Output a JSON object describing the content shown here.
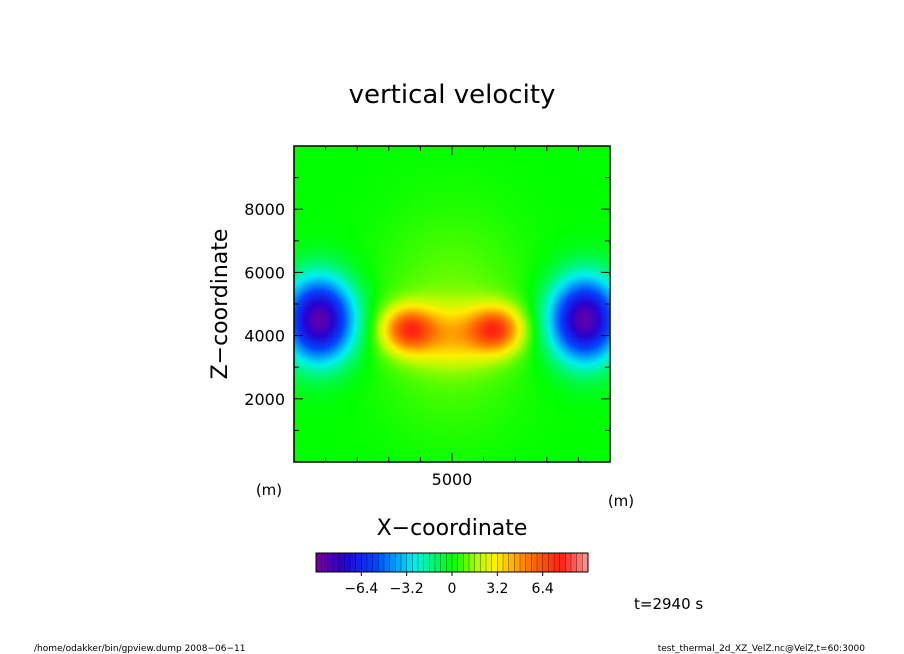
{
  "chart_data": {
    "type": "heatmap",
    "title": "vertical velocity",
    "xlabel": "X−coordinate",
    "ylabel": "Z−coordinate",
    "x_unit": "(m)",
    "y_unit": "(m)",
    "xlim": [
      0,
      10000
    ],
    "ylim": [
      0,
      10000
    ],
    "x_ticks": [
      {
        "value": 5000,
        "label": "5000"
      }
    ],
    "y_ticks": [
      {
        "value": 2000,
        "label": "2000"
      },
      {
        "value": 4000,
        "label": "4000"
      },
      {
        "value": 6000,
        "label": "6000"
      },
      {
        "value": 8000,
        "label": "8000"
      }
    ],
    "x_minor_step": 1000,
    "y_minor_step": 1000,
    "features": [
      {
        "x": 800,
        "z": 4500,
        "w": -9.0
      },
      {
        "x": 9200,
        "z": 4500,
        "w": -9.0
      },
      {
        "x": 3600,
        "z": 4200,
        "w": 5.5
      },
      {
        "x": 6400,
        "z": 4200,
        "w": 5.5
      },
      {
        "x": 5000,
        "z": 4000,
        "w": 3.0
      }
    ],
    "colorbar": {
      "min": -9.6,
      "max": 9.6,
      "step": 0.4,
      "tick_labels": [
        {
          "value": -6.4,
          "label": "−6.4"
        },
        {
          "value": -3.2,
          "label": "−3.2"
        },
        {
          "value": 0,
          "label": "0"
        },
        {
          "value": 3.2,
          "label": "3.2"
        },
        {
          "value": 6.4,
          "label": "6.4"
        }
      ]
    },
    "time_label": "t=2940 s"
  },
  "footer": {
    "left": "/home/odakker/bin/gpview.dump  2008−06−11",
    "right": "test_thermal_2d_XZ_VelZ.nc@VelZ,t=60:3000"
  }
}
